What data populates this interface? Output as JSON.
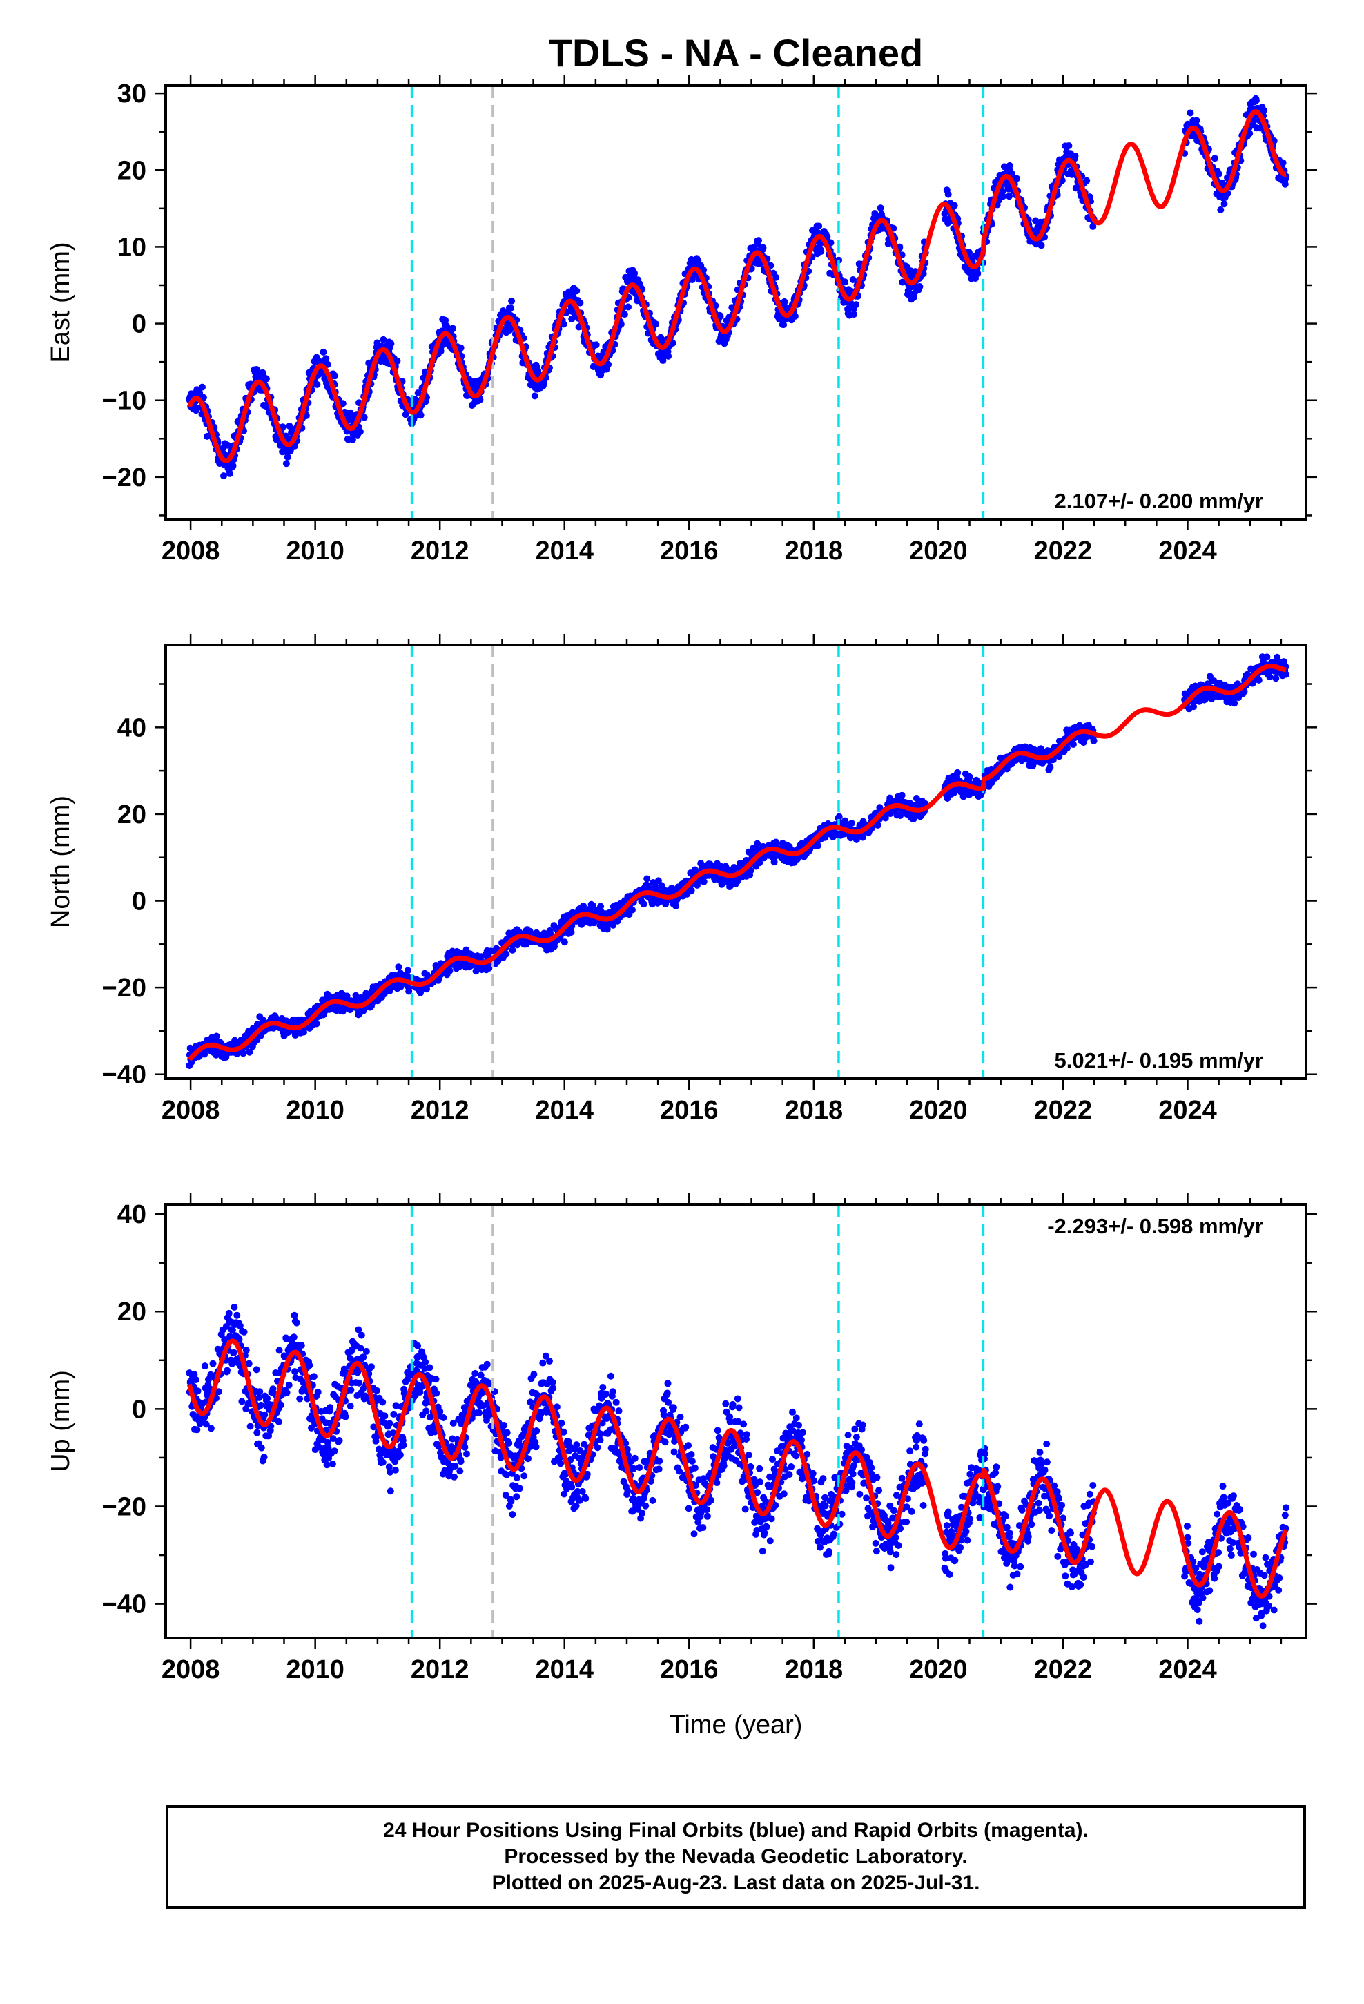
{
  "chart_data": {
    "type": "scatter",
    "title": "TDLS  - NA - Cleaned",
    "xlabel": "Time (year)",
    "xlim": [
      2007.6,
      2025.9
    ],
    "x_ticks": [
      2008,
      2010,
      2012,
      2014,
      2016,
      2018,
      2020,
      2022,
      2024
    ],
    "x_tick_labels": [
      "2008",
      "2010",
      "2012",
      "2014",
      "2016",
      "2018",
      "2020",
      "2022",
      "2024"
    ],
    "colors": {
      "observations": "#0000ff",
      "model": "#ff0000",
      "equipment_change": "#00e5ee",
      "other_event": "#bebebe"
    },
    "vertical_lines": [
      {
        "x": 2011.55,
        "kind": "equipment_change"
      },
      {
        "x": 2012.85,
        "kind": "other_event"
      },
      {
        "x": 2018.4,
        "kind": "equipment_change"
      },
      {
        "x": 2020.72,
        "kind": "equipment_change"
      }
    ],
    "data_gaps": [
      [
        2019.8,
        2020.1
      ],
      [
        2022.5,
        2023.95
      ]
    ],
    "panels": [
      {
        "component": "east",
        "ylabel": "East (mm)",
        "ylim": [
          -25.5,
          31
        ],
        "y_ticks": [
          -20,
          -10,
          0,
          10,
          20,
          30
        ],
        "y_tick_labels": [
          "−20",
          "−10",
          "0",
          "10",
          "20",
          "30"
        ],
        "rate_label": "2.107+/- 0.200 mm/yr",
        "rate_position": "bottom-right",
        "rate_mm_per_yr": 2.107,
        "model": {
          "ref_year": 2008.0,
          "offset_mm": -14.5,
          "annual_amplitude_mm": 4.6,
          "annual_peak_year_fraction": 0.08,
          "offsets": [
            {
              "x": 2011.55,
              "step_mm": 0
            },
            {
              "x": 2018.4,
              "step_mm": 0
            },
            {
              "x": 2020.72,
              "step_mm": 1.5
            }
          ]
        },
        "scatter_mm": 1.4
      },
      {
        "component": "north",
        "ylabel": "North (mm)",
        "ylim": [
          -41,
          59
        ],
        "y_ticks": [
          -40,
          -20,
          0,
          20,
          40
        ],
        "y_tick_labels": [
          "−40",
          "−20",
          "0",
          "20",
          "40"
        ],
        "rate_label": "5.021+/- 0.195 mm/yr",
        "rate_position": "bottom-right",
        "rate_mm_per_yr": 5.021,
        "model": {
          "ref_year": 2008.0,
          "offset_mm": -36.3,
          "annual_amplitude_mm": 1.6,
          "annual_peak_year_fraction": 0.25,
          "offsets": [
            {
              "x": 2011.55,
              "step_mm": 0
            },
            {
              "x": 2018.4,
              "step_mm": 0
            },
            {
              "x": 2020.72,
              "step_mm": 2.0
            }
          ]
        },
        "scatter_mm": 1.6
      },
      {
        "component": "up",
        "ylabel": "Up (mm)",
        "ylim": [
          -47,
          42
        ],
        "y_ticks": [
          -40,
          -20,
          0,
          20,
          40
        ],
        "y_tick_labels": [
          "−40",
          "−20",
          "0",
          "20",
          "40"
        ],
        "rate_label": "-2.293+/- 0.598 mm/yr",
        "rate_position": "top-right",
        "rate_mm_per_yr": -2.293,
        "model": {
          "ref_year": 2008.0,
          "offset_mm": 7.5,
          "annual_amplitude_mm": 8.0,
          "annual_peak_year_fraction": 0.68,
          "offsets": [
            {
              "x": 2011.55,
              "step_mm": 0
            },
            {
              "x": 2018.4,
              "step_mm": 0
            },
            {
              "x": 2020.72,
              "step_mm": 1.5
            }
          ]
        },
        "scatter_mm": 5.0
      }
    ]
  },
  "footer": {
    "line1": "24 Hour Positions Using Final Orbits (blue) and Rapid Orbits (magenta).",
    "line2": "Processed by the Nevada Geodetic Laboratory.",
    "line3": "Plotted on 2025-Aug-23. Last data on 2025-Jul-31."
  }
}
